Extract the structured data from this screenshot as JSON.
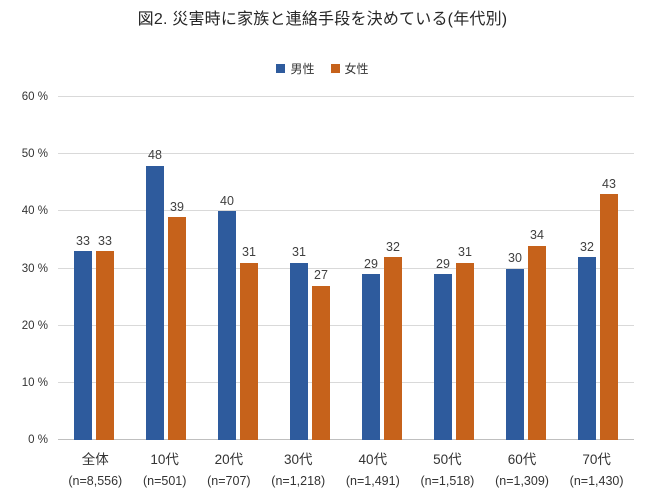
{
  "title": "図2. 災害時に家族と連絡手段を決めている(年代別)",
  "chart_data": {
    "type": "bar",
    "title": "図2. 災害時に家族と連絡手段を決めている(年代別)",
    "categories": [
      "全体",
      "10代",
      "20代",
      "30代",
      "40代",
      "50代",
      "60代",
      "70代"
    ],
    "category_sublabels": [
      "(n=8,556)",
      "(n=501)",
      "(n=707)",
      "(n=1,218)",
      "(n=1,491)",
      "(n=1,518)",
      "(n=1,309)",
      "(n=1,430)"
    ],
    "series": [
      {
        "name": "男性",
        "color": "#2e5b9d",
        "values": [
          33,
          48,
          40,
          31,
          29,
          29,
          30,
          32
        ]
      },
      {
        "name": "女性",
        "color": "#c6621b",
        "values": [
          33,
          39,
          31,
          27,
          32,
          31,
          34,
          43
        ]
      }
    ],
    "ylim": [
      0,
      60
    ],
    "yticks": [
      0,
      10,
      20,
      30,
      40,
      50,
      60
    ],
    "ytick_suffix": " %",
    "grid": true,
    "legend_position": "top",
    "data_labels": true
  }
}
